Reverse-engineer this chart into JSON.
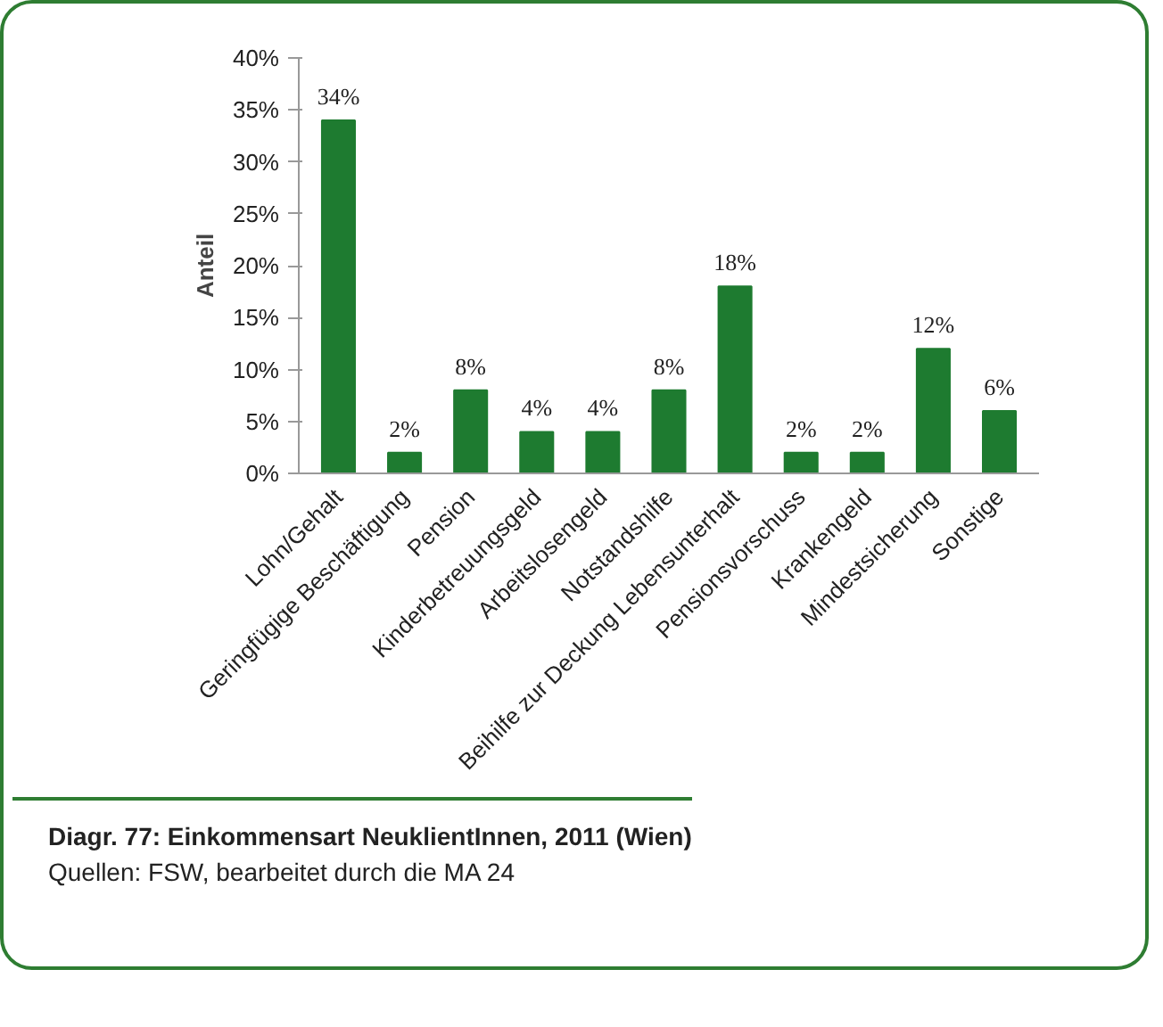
{
  "chart_data": {
    "type": "bar",
    "title": "Diagr. 77: Einkommensart NeuklientInnen, 2011 (Wien)",
    "ylabel": "Anteil",
    "categories": [
      "Lohn/Gehalt",
      "Geringfügige Beschäftigung",
      "Pension",
      "Kinderbetreuungsgeld",
      "Arbeitslosengeld",
      "Notstandshilfe",
      "Beihilfe zur Deckung Lebensunterhalt",
      "Pensionsvorschuss",
      "Krankengeld",
      "Mindestsicherung",
      "Sonstige"
    ],
    "values": [
      34,
      2,
      8,
      4,
      4,
      8,
      18,
      2,
      2,
      12,
      6
    ],
    "value_labels": [
      "34%",
      "2%",
      "8%",
      "4%",
      "4%",
      "8%",
      "18%",
      "2%",
      "2%",
      "12%",
      "6%"
    ],
    "color": "#1e7b30",
    "ylim": [
      0,
      40
    ],
    "yticks": [
      {
        "value": 0,
        "label": "0%"
      },
      {
        "value": 5,
        "label": "5%"
      },
      {
        "value": 10,
        "label": "10%"
      },
      {
        "value": 15,
        "label": "15%"
      },
      {
        "value": 20,
        "label": "20%"
      },
      {
        "value": 25,
        "label": "25%"
      },
      {
        "value": 30,
        "label": "30%"
      },
      {
        "value": 35,
        "label": "35%"
      },
      {
        "value": 40,
        "label": "40%"
      }
    ],
    "annotations": [
      "Quellen: FSW, bearbeitet durch die MA 24"
    ]
  }
}
